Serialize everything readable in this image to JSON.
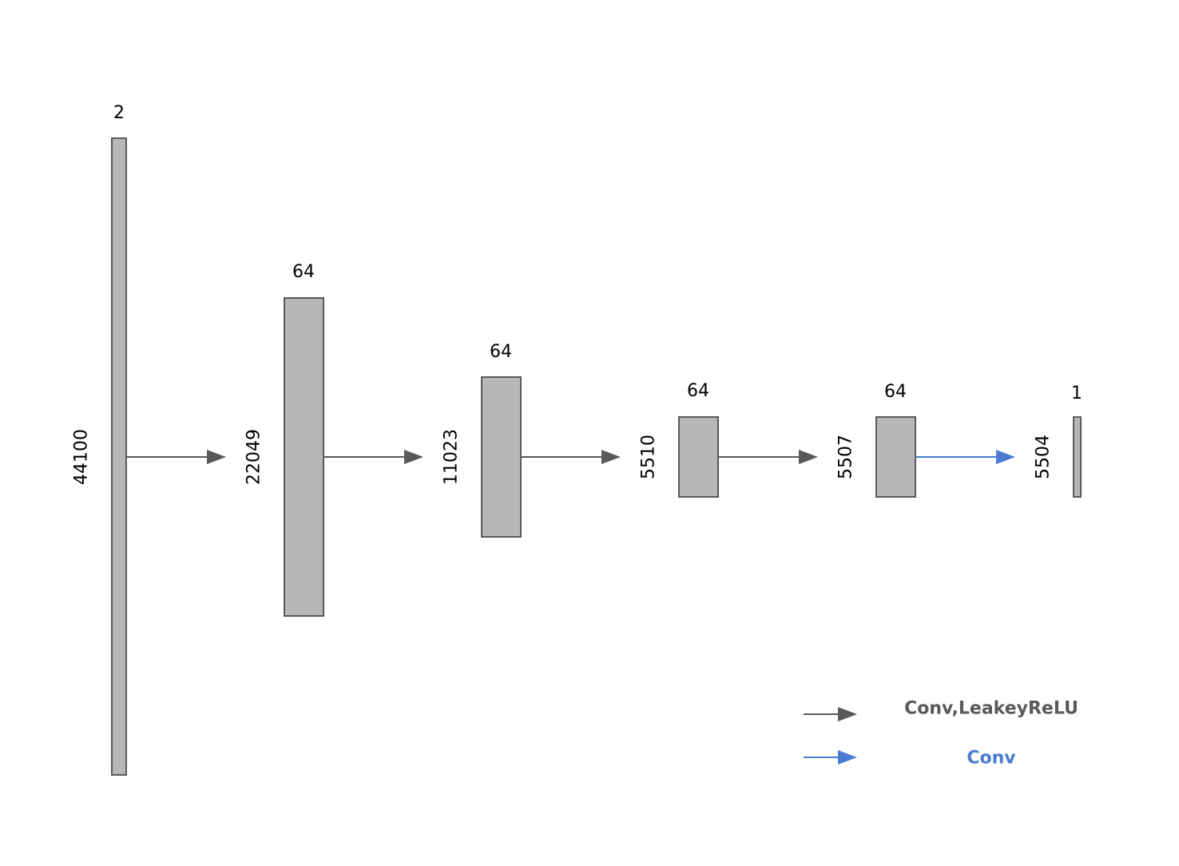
{
  "colors": {
    "gray_arrow": "#595959",
    "blue_arrow": "#4a7bd0",
    "layer_fill": "#b7b7b7",
    "layer_stroke": "#595959"
  },
  "layers": [
    {
      "channels": "2",
      "length": "44100"
    },
    {
      "channels": "64",
      "length": "22049"
    },
    {
      "channels": "64",
      "length": "11023"
    },
    {
      "channels": "64",
      "length": "5510"
    },
    {
      "channels": "64",
      "length": "5507"
    },
    {
      "channels": "1",
      "length": "5504"
    }
  ],
  "arrows": [
    {
      "from": 0,
      "to": 1,
      "kind": "conv_leakyrelu"
    },
    {
      "from": 1,
      "to": 2,
      "kind": "conv_leakyrelu"
    },
    {
      "from": 2,
      "to": 3,
      "kind": "conv_leakyrelu"
    },
    {
      "from": 3,
      "to": 4,
      "kind": "conv_leakyrelu"
    },
    {
      "from": 4,
      "to": 5,
      "kind": "conv"
    }
  ],
  "legend": [
    {
      "kind": "conv_leakyrelu",
      "label": "Conv,LeakeyReLU",
      "color": "#595959"
    },
    {
      "kind": "conv",
      "label": "Conv",
      "color": "#4a7bd0"
    }
  ]
}
